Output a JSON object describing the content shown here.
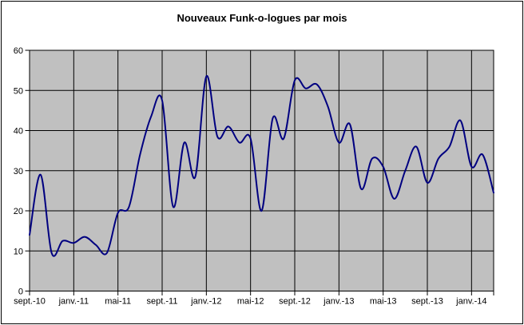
{
  "window": {
    "background": "#ffffff",
    "border_color": "#000000"
  },
  "chart_data": {
    "type": "line",
    "title": "Nouveaux Funk-o-logues par mois",
    "xlabel": "",
    "ylabel": "",
    "legend": "none",
    "grid": true,
    "smooth": true,
    "plot_bg": "#c0c0c0",
    "grid_color": "#000000",
    "line_color": "#000080",
    "ylim": [
      0,
      60
    ],
    "ytick_step": 10,
    "ytick_labels": [
      "0",
      "10",
      "20",
      "30",
      "40",
      "50",
      "60"
    ],
    "xtick_every": 4,
    "categories": [
      "sept.-10",
      "oct.-10",
      "nov.-10",
      "déc.-10",
      "janv.-11",
      "févr.-11",
      "mars-11",
      "avr.-11",
      "mai-11",
      "juin-11",
      "juil.-11",
      "août-11",
      "sept.-11",
      "oct.-11",
      "nov.-11",
      "déc.-11",
      "janv.-12",
      "févr.-12",
      "mars-12",
      "avr.-12",
      "mai-12",
      "juin-12",
      "juil.-12",
      "août-12",
      "sept.-12",
      "oct.-12",
      "nov.-12",
      "déc.-12",
      "janv.-13",
      "févr.-13",
      "mars-13",
      "avr.-13",
      "mai-13",
      "juin-13",
      "juil.-13",
      "août-13",
      "sept.-13",
      "oct.-13",
      "nov.-13",
      "déc.-13",
      "janv.-14",
      "févr.-14",
      "mars-14"
    ],
    "values": [
      14,
      29,
      9.5,
      12.5,
      12,
      13.5,
      11.5,
      9.5,
      19.5,
      21,
      34,
      43.5,
      47.5,
      21,
      37,
      28.5,
      53.5,
      38.5,
      41,
      37,
      38,
      20,
      43,
      38,
      52.5,
      50.5,
      51.5,
      46,
      37,
      41.5,
      25.5,
      33,
      31,
      23,
      30,
      36,
      27,
      33,
      36,
      42.5,
      31,
      34,
      24.5
    ],
    "x_tick_labels_visible": [
      "sept.-10",
      "janv.-11",
      "mai-11",
      "sept.-11",
      "janv.-12",
      "mai-12",
      "sept.-12",
      "janv.-13",
      "mai-13",
      "sept.-13",
      "janv.-14"
    ]
  }
}
